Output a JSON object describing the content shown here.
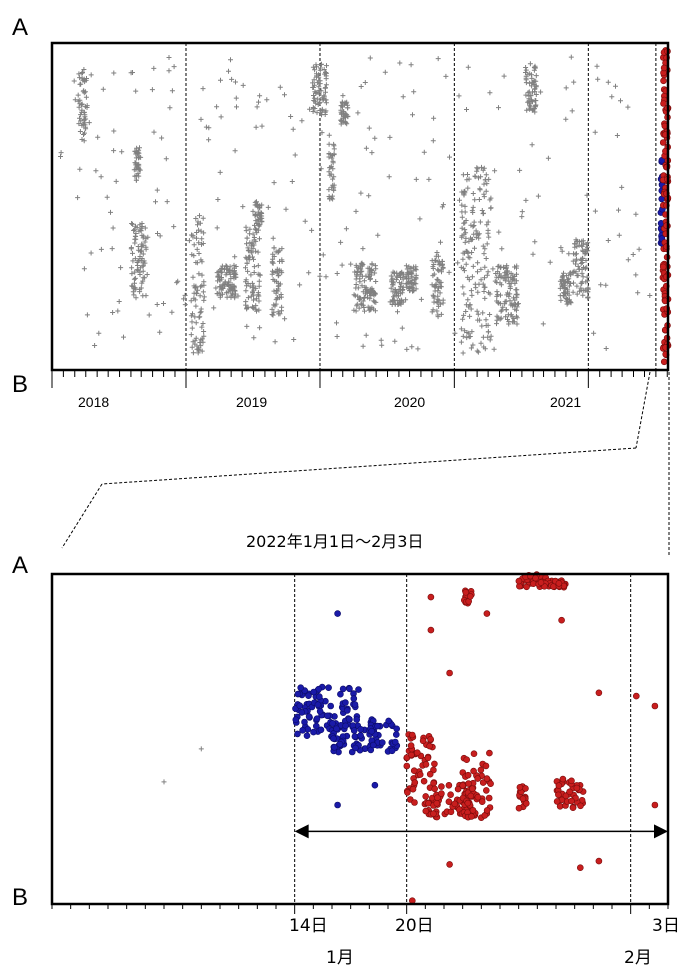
{
  "chart_data": [
    {
      "type": "scatter",
      "title": "",
      "y_top_label": "A",
      "y_bottom_label": "B",
      "x_tick_labels": [
        "2018",
        "2019",
        "2020",
        "2021"
      ],
      "x_range": [
        "2017-07-01",
        "2022-02-03"
      ],
      "y_range": [
        0,
        1
      ],
      "year_boundaries": [
        "2018-07-01",
        "2019-07-01",
        "2020-07-01",
        "2021-07-01"
      ],
      "highlight_start": "2022-01-01",
      "series": [
        {
          "marker": "plus",
          "color": "#808080",
          "clusters": [
            {
              "x": [
                "2017-09-10",
                "2017-10-05"
              ],
              "y": [
                0.7,
                0.92
              ]
            },
            {
              "x": [
                "2018-02-10",
                "2018-02-28"
              ],
              "y": [
                0.58,
                0.68
              ]
            },
            {
              "x": [
                "2018-02-01",
                "2018-03-15"
              ],
              "y": [
                0.22,
                0.45
              ]
            },
            {
              "x": [
                "2018-07-15",
                "2018-08-20"
              ],
              "y": [
                0.05,
                0.48
              ]
            },
            {
              "x": [
                "2018-09-20",
                "2018-11-15"
              ],
              "y": [
                0.22,
                0.32
              ]
            },
            {
              "x": [
                "2018-12-10",
                "2019-01-20"
              ],
              "y": [
                0.18,
                0.46
              ]
            },
            {
              "x": [
                "2019-02-20",
                "2019-03-20"
              ],
              "y": [
                0.16,
                0.38
              ]
            },
            {
              "x": [
                "2019-01-05",
                "2019-01-25"
              ],
              "y": [
                0.42,
                0.52
              ]
            },
            {
              "x": [
                "2019-06-10",
                "2019-07-20"
              ],
              "y": [
                0.78,
                0.94
              ]
            },
            {
              "x": [
                "2019-07-25",
                "2019-08-10"
              ],
              "y": [
                0.52,
                0.7
              ]
            },
            {
              "x": [
                "2019-08-25",
                "2019-09-15"
              ],
              "y": [
                0.75,
                0.82
              ]
            },
            {
              "x": [
                "2019-10-01",
                "2019-11-30"
              ],
              "y": [
                0.18,
                0.34
              ]
            },
            {
              "x": [
                "2020-01-10",
                "2020-02-15"
              ],
              "y": [
                0.2,
                0.3
              ]
            },
            {
              "x": [
                "2020-02-20",
                "2020-03-20"
              ],
              "y": [
                0.24,
                0.32
              ]
            },
            {
              "x": [
                "2020-05-01",
                "2020-06-01"
              ],
              "y": [
                0.16,
                0.36
              ]
            },
            {
              "x": [
                "2020-07-20",
                "2020-10-10"
              ],
              "y": [
                0.05,
                0.62
              ]
            },
            {
              "x": [
                "2020-10-20",
                "2020-12-20"
              ],
              "y": [
                0.14,
                0.32
              ]
            },
            {
              "x": [
                "2021-01-10",
                "2021-02-10"
              ],
              "y": [
                0.78,
                0.94
              ]
            },
            {
              "x": [
                "2021-04-15",
                "2021-05-15"
              ],
              "y": [
                0.2,
                0.3
              ]
            },
            {
              "x": [
                "2021-05-20",
                "2021-07-01"
              ],
              "y": [
                0.22,
                0.4
              ]
            }
          ]
        },
        {
          "marker": "circle",
          "color": "#1a1aa8",
          "x_range": [
            "2022-01-14",
            "2022-01-20"
          ],
          "y": [
            0.35,
            0.65
          ]
        },
        {
          "marker": "circle",
          "color": "#c81e1e",
          "x_range": [
            "2022-01-20",
            "2022-02-03"
          ],
          "y": [
            0.02,
            0.98
          ]
        }
      ]
    },
    {
      "type": "scatter",
      "title": "2022年1月1日〜2月3日",
      "y_top_label": "A",
      "y_bottom_label": "B",
      "x_range": [
        "2022-01-01",
        "2022-02-03"
      ],
      "y_range": [
        0,
        1
      ],
      "x_tick_labels": [
        "14日",
        "20日",
        "3日"
      ],
      "x_month_labels": [
        "1月",
        "2月"
      ],
      "vertical_lines": [
        "2022-01-14",
        "2022-01-20",
        "2022-02-01",
        "2022-02-03"
      ],
      "arrow": {
        "from": "2022-01-14",
        "to": "2022-02-03",
        "y": 0.22
      },
      "series": [
        {
          "marker": "plus",
          "color": "#808080",
          "points": [
            {
              "x": "2022-01-07",
              "y": 0.37
            },
            {
              "x": "2022-01-09",
              "y": 0.47
            }
          ]
        },
        {
          "marker": "circle",
          "color": "#1a1aa8",
          "clusters": [
            {
              "x": [
                "2022-01-14",
                "2022-01-17"
              ],
              "y": [
                0.5,
                0.66
              ]
            },
            {
              "x": [
                "2022-01-16",
                "2022-01-19"
              ],
              "y": [
                0.46,
                0.56
              ]
            }
          ],
          "points": [
            {
              "x": "2022-01-16",
              "y": 0.88
            },
            {
              "x": "2022-01-16",
              "y": 0.3
            },
            {
              "x": "2022-01-18",
              "y": 0.36
            }
          ]
        },
        {
          "marker": "circle",
          "color": "#c81e1e",
          "clusters": [
            {
              "x": [
                "2022-01-20",
                "2022-01-21"
              ],
              "y": [
                0.3,
                0.52
              ]
            },
            {
              "x": [
                "2022-01-21",
                "2022-01-23"
              ],
              "y": [
                0.26,
                0.36
              ]
            },
            {
              "x": [
                "2022-01-23",
                "2022-01-24"
              ],
              "y": [
                0.26,
                0.46
              ]
            },
            {
              "x": [
                "2022-01-26",
                "2022-01-26"
              ],
              "y": [
                0.29,
                0.36
              ]
            },
            {
              "x": [
                "2022-01-28",
                "2022-01-29"
              ],
              "y": [
                0.29,
                0.38
              ]
            },
            {
              "x": [
                "2022-01-23",
                "2022-01-23"
              ],
              "y": [
                0.91,
                0.95
              ]
            },
            {
              "x": [
                "2022-01-26",
                "2022-01-27"
              ],
              "y": [
                0.96,
                1.0
              ]
            },
            {
              "x": [
                "2022-01-27",
                "2022-01-28"
              ],
              "y": [
                0.96,
                0.98
              ]
            }
          ],
          "points": [
            {
              "x": "2022-01-21",
              "y": 0.83
            },
            {
              "x": "2022-01-21",
              "y": 0.93
            },
            {
              "x": "2022-01-22",
              "y": 0.7
            },
            {
              "x": "2022-01-20",
              "y": 0.01
            },
            {
              "x": "2022-01-24",
              "y": 0.88
            },
            {
              "x": "2022-01-28",
              "y": 0.86
            },
            {
              "x": "2022-01-30",
              "y": 0.64
            },
            {
              "x": "2022-02-01",
              "y": 0.63
            },
            {
              "x": "2022-02-02",
              "y": 0.6
            },
            {
              "x": "2022-02-02",
              "y": 0.3
            },
            {
              "x": "2022-01-29",
              "y": 0.11
            },
            {
              "x": "2022-01-30",
              "y": 0.13
            },
            {
              "x": "2022-01-24",
              "y": 0.38
            },
            {
              "x": "2022-01-22",
              "y": 0.12
            }
          ]
        }
      ]
    }
  ]
}
